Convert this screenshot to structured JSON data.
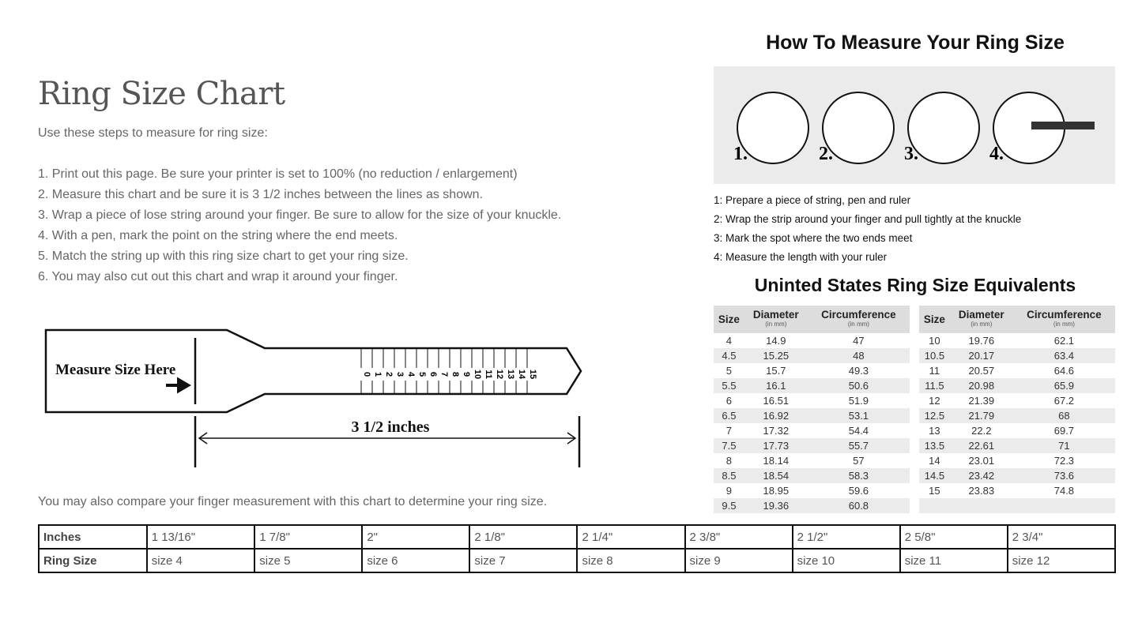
{
  "title": "Ring Size Chart",
  "intro": "Use these steps to measure for ring size:",
  "steps": [
    "1. Print out this page. Be sure your printer is set to 100% (no reduction / enlargement)",
    "2. Measure this chart and be sure it is 3 1/2 inches between the lines as shown.",
    "3. Wrap a piece of lose string around your finger. Be sure to allow for the size of your knuckle.",
    "4. With a pen, mark the point on the string where the end meets.",
    "5. Match the string up with this ring size chart to get your ring size.",
    "6. You may also cut out this chart and wrap it around your finger."
  ],
  "ruler": {
    "label": "Measure Size Here",
    "length": "3 1/2 inches",
    "ticks": [
      "0",
      "1",
      "2",
      "3",
      "4",
      "5",
      "6",
      "7",
      "8",
      "9",
      "10",
      "11",
      "12",
      "13",
      "14",
      "15"
    ]
  },
  "compare_text": "You may also compare your finger measurement with this chart to determine your ring size.",
  "compare": {
    "row1": [
      "Inches",
      "1 13/16\"",
      "1 7/8\"",
      "2\"",
      "2 1/8\"",
      "2 1/4\"",
      "2 3/8\"",
      "2 1/2\"",
      "2 5/8\"",
      "2 3/4\""
    ],
    "row2": [
      "Ring Size",
      "size 4",
      "size 5",
      "size 6",
      "size 7",
      "size 8",
      "size 9",
      "size 10",
      "size 11",
      "size 12"
    ]
  },
  "howto": {
    "title": "How To Measure Your Ring Size",
    "step_numbers": [
      "1.",
      "2.",
      "3.",
      "4."
    ],
    "steps": [
      "1: Prepare a piece of string, pen and ruler",
      "2: Wrap the strip around your finger and pull tightly at the knuckle",
      "3: Mark the spot where the two ends meet",
      "4: Measure the length with your ruler"
    ]
  },
  "equiv": {
    "title": "Uninted States Ring Size Equivalents",
    "headers": [
      "Size",
      "Diameter",
      "Circumference"
    ],
    "unit": "(in mm)",
    "left": [
      [
        "4",
        "14.9",
        "47"
      ],
      [
        "4.5",
        "15.25",
        "48"
      ],
      [
        "5",
        "15.7",
        "49.3"
      ],
      [
        "5.5",
        "16.1",
        "50.6"
      ],
      [
        "6",
        "16.51",
        "51.9"
      ],
      [
        "6.5",
        "16.92",
        "53.1"
      ],
      [
        "7",
        "17.32",
        "54.4"
      ],
      [
        "7.5",
        "17.73",
        "55.7"
      ],
      [
        "8",
        "18.14",
        "57"
      ],
      [
        "8.5",
        "18.54",
        "58.3"
      ],
      [
        "9",
        "18.95",
        "59.6"
      ],
      [
        "9.5",
        "19.36",
        "60.8"
      ]
    ],
    "right": [
      [
        "10",
        "19.76",
        "62.1"
      ],
      [
        "10.5",
        "20.17",
        "63.4"
      ],
      [
        "11",
        "20.57",
        "64.6"
      ],
      [
        "11.5",
        "20.98",
        "65.9"
      ],
      [
        "12",
        "21.39",
        "67.2"
      ],
      [
        "12.5",
        "21.79",
        "68"
      ],
      [
        "13",
        "22.2",
        "69.7"
      ],
      [
        "13.5",
        "22.61",
        "71"
      ],
      [
        "14",
        "23.01",
        "72.3"
      ],
      [
        "14.5",
        "23.42",
        "73.6"
      ],
      [
        "15",
        "23.83",
        "74.8"
      ],
      [
        "",
        "",
        ""
      ]
    ]
  }
}
